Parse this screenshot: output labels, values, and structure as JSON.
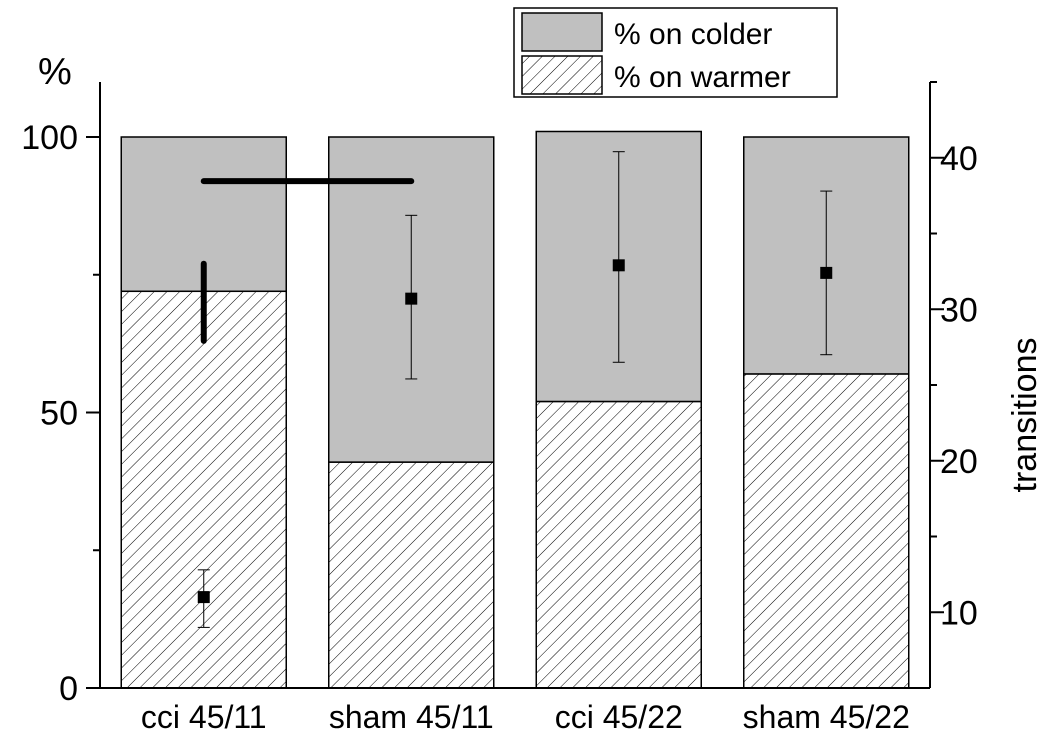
{
  "chart_data": {
    "type": "bar",
    "stacked": true,
    "categories": [
      "cci 45/11",
      "sham 45/11",
      "cci 45/22",
      "sham 45/22"
    ],
    "series": [
      {
        "name": "% on warmer",
        "values": [
          72,
          41,
          52,
          57
        ],
        "fill": "hatched"
      },
      {
        "name": "% on colder",
        "values": [
          28,
          59,
          49,
          43
        ],
        "fill": "#c0c0c0"
      }
    ],
    "overlay": {
      "axis": "right",
      "points": [
        11,
        30.7,
        32.9,
        32.4
      ],
      "err_low": [
        9,
        25.4,
        26.5,
        27
      ],
      "err_high": [
        12.8,
        36.2,
        40.4,
        37.8
      ]
    },
    "y_left": {
      "label": "%",
      "ylim": [
        0,
        100
      ],
      "ticks": [
        "0",
        "50",
        "100"
      ]
    },
    "y_right": {
      "label": "transitions",
      "ylim": [
        5,
        45
      ],
      "ticks": [
        "10",
        "20",
        "30",
        "40"
      ]
    },
    "legend": {
      "position": "top-right",
      "entries": [
        "% on colder",
        "% on warmer"
      ]
    },
    "annotations": [
      {
        "type": "significance-bar",
        "from": "cci 45/11",
        "to": "sham 45/11",
        "level": 92
      },
      {
        "type": "vertical-bar",
        "category": "cci 45/11",
        "from": 63,
        "to": 77
      }
    ],
    "colors": {
      "colder": "#c0c0c0",
      "warmer_bg": "#ffffff",
      "hatch": "#000000",
      "marker": "#000000"
    }
  }
}
